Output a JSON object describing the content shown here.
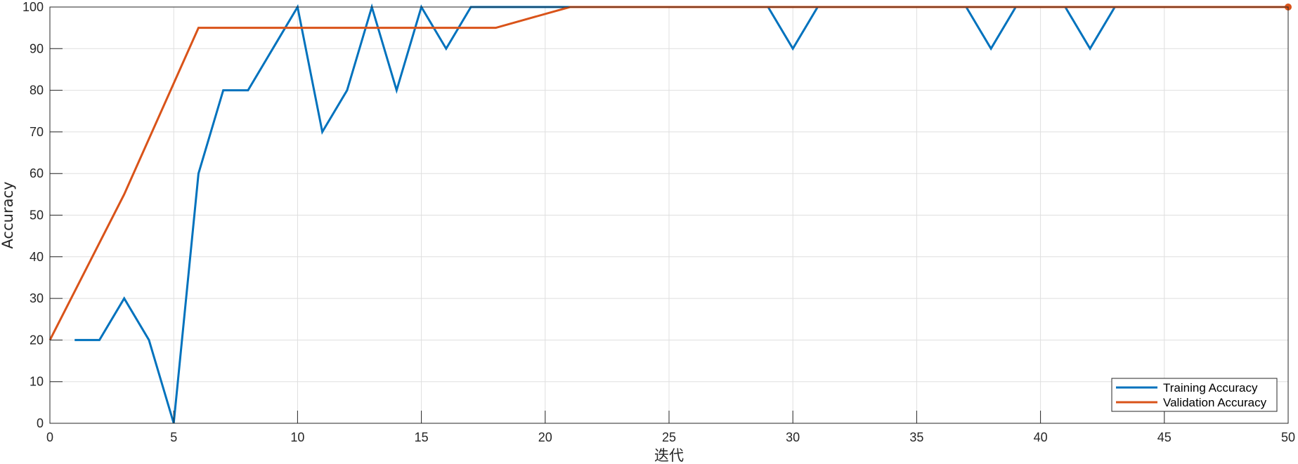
{
  "chart_data": {
    "type": "line",
    "title": "",
    "xlabel": "迭代",
    "ylabel": "Accuracy",
    "xlim": [
      0,
      50
    ],
    "ylim": [
      0,
      100
    ],
    "xticks": [
      0,
      5,
      10,
      15,
      20,
      25,
      30,
      35,
      40,
      45,
      50
    ],
    "yticks": [
      0,
      10,
      20,
      30,
      40,
      50,
      60,
      70,
      80,
      90,
      100
    ],
    "grid": true,
    "legend_position": "bottom-right",
    "series": [
      {
        "name": "Training Accuracy",
        "color": "#0072BD",
        "x": [
          1,
          2,
          3,
          4,
          5,
          6,
          7,
          8,
          9,
          10,
          11,
          12,
          13,
          14,
          15,
          16,
          17,
          18,
          19,
          20,
          21,
          22,
          23,
          24,
          25,
          26,
          27,
          28,
          29,
          30,
          31,
          32,
          33,
          34,
          35,
          36,
          37,
          38,
          39,
          40,
          41,
          42,
          43,
          44,
          45,
          46,
          47,
          48,
          49,
          50
        ],
        "y": [
          20,
          20,
          30,
          20,
          0,
          60,
          80,
          80,
          90,
          100,
          70,
          80,
          100,
          80,
          100,
          90,
          100,
          100,
          100,
          100,
          100,
          100,
          100,
          100,
          100,
          100,
          100,
          100,
          100,
          90,
          100,
          100,
          100,
          100,
          100,
          100,
          100,
          90,
          100,
          100,
          100,
          90,
          100,
          100,
          100,
          100,
          100,
          100,
          100,
          100
        ]
      },
      {
        "name": "Validation Accuracy",
        "color": "#D95319",
        "x": [
          0,
          3,
          6,
          18,
          21,
          50
        ],
        "y": [
          20,
          55,
          95,
          95,
          100,
          100
        ],
        "final_marker": true
      }
    ]
  }
}
